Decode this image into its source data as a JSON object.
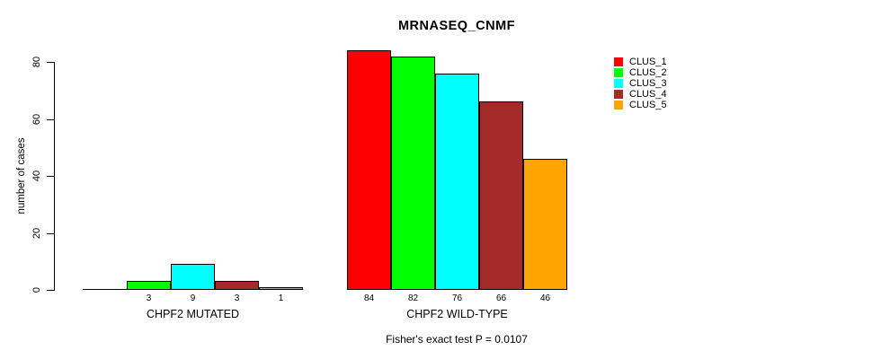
{
  "chart_data": {
    "type": "bar",
    "title": "MRNASEQ_CNMF",
    "ylabel": "number of cases",
    "xlabel": "",
    "ylim": [
      0,
      80
    ],
    "yticks": [
      0,
      20,
      40,
      60,
      80
    ],
    "grid": false,
    "legend_position": "right",
    "categories": [
      "CHPF2 MUTATED",
      "CHPF2 WILD-TYPE"
    ],
    "series": [
      {
        "name": "CLUS_1",
        "color": "#ff0000",
        "values": [
          0,
          84
        ]
      },
      {
        "name": "CLUS_2",
        "color": "#00ff00",
        "values": [
          3,
          82
        ]
      },
      {
        "name": "CLUS_3",
        "color": "#00ffff",
        "values": [
          9,
          76
        ]
      },
      {
        "name": "CLUS_4",
        "color": "#a52a2a",
        "values": [
          3,
          66
        ]
      },
      {
        "name": "CLUS_5",
        "color": "#ffa500",
        "values": [
          1,
          46
        ]
      }
    ],
    "bar_value_labels": [
      [
        "",
        "3",
        "9",
        "3",
        "1"
      ],
      [
        "84",
        "82",
        "76",
        "66",
        "46"
      ]
    ],
    "footnote": "Fisher's exact test P = 0.0107"
  }
}
